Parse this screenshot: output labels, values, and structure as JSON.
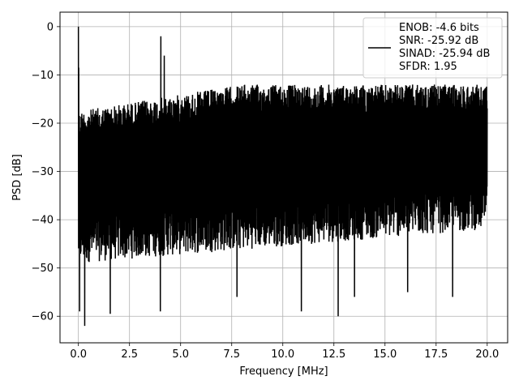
{
  "chart_data": {
    "type": "line",
    "xlabel": "Frequency [MHz]",
    "ylabel": "PSD [dB]",
    "xlim": [
      -0.9,
      21.0
    ],
    "ylim": [
      -65.5,
      3.0
    ],
    "xticks": [
      0.0,
      2.5,
      5.0,
      7.5,
      10.0,
      12.5,
      15.0,
      17.5,
      20.0
    ],
    "xtick_labels": [
      "0.0",
      "2.5",
      "5.0",
      "7.5",
      "10.0",
      "12.5",
      "15.0",
      "17.5",
      "20.0"
    ],
    "yticks": [
      0,
      -10,
      -20,
      -30,
      -40,
      -50,
      -60
    ],
    "ytick_labels": [
      "0",
      "−10",
      "−20",
      "−30",
      "−40",
      "−50",
      "−60"
    ],
    "grid": true,
    "line_color": "#000000",
    "legend_placement": "top-right",
    "legend": [
      "ENOB: -4.6 bits",
      "SNR: -25.92 dB",
      "SINAD: -25.94 dB",
      "SFDR: 1.95"
    ],
    "series": [
      {
        "x_range": [
          0.0,
          20.0
        ],
        "noise_floor_upper_db": [
          -17.5,
          -12.0
        ],
        "noise_floor_lower_db": [
          -43.0,
          -36.0
        ],
        "peaks": [
          {
            "x": 0.0,
            "y": 0.0
          },
          {
            "x": 0.02,
            "y": -8.5
          },
          {
            "x": 4.03,
            "y": -2.0
          },
          {
            "x": 4.2,
            "y": -6.0
          }
        ],
        "dips": [
          {
            "x": 0.05,
            "y": -59.0
          },
          {
            "x": 0.3,
            "y": -62.0
          },
          {
            "x": 1.55,
            "y": -59.5
          },
          {
            "x": 4.0,
            "y": -59.0
          },
          {
            "x": 7.75,
            "y": -56.0
          },
          {
            "x": 10.9,
            "y": -59.0
          },
          {
            "x": 12.7,
            "y": -60.0
          },
          {
            "x": 13.5,
            "y": -56.0
          },
          {
            "x": 16.1,
            "y": -55.0
          },
          {
            "x": 18.3,
            "y": -56.0
          }
        ]
      }
    ]
  }
}
